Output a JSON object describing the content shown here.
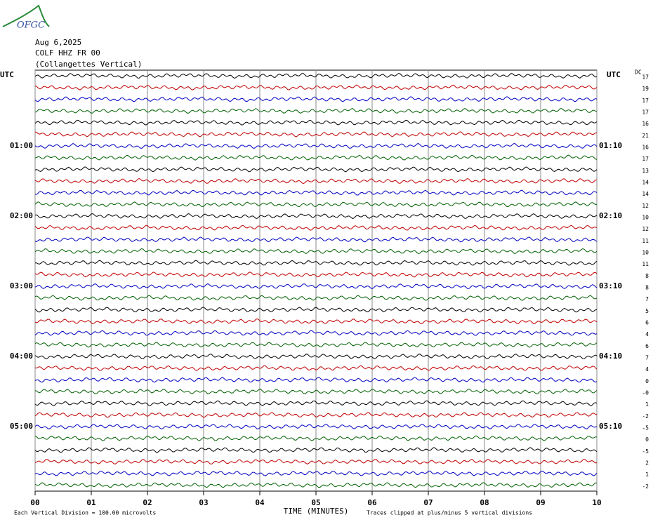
{
  "chart_data": {
    "type": "helicorder",
    "logo": "OFGC",
    "date": "Aug 6,2025",
    "station": "COLF HHZ FR 00",
    "subtitle": "(Collangettes Vertical)",
    "left_header": "UTC",
    "right_header": "UTC",
    "dc_header": "DC",
    "hour_labels": [
      "01:00",
      "02:00",
      "03:00",
      "04:00",
      "05:00"
    ],
    "right_labels": [
      "01:10",
      "02:10",
      "03:10",
      "04:10",
      "05:10"
    ],
    "dc_offsets": [
      17,
      19,
      17,
      17,
      16,
      21,
      16,
      17,
      13,
      14,
      14,
      12,
      10,
      12,
      11,
      10,
      11,
      8,
      8,
      7,
      5,
      6,
      4,
      6,
      7,
      4,
      0,
      {
        "value": 0,
        "label": "-0"
      },
      1,
      -2,
      -5,
      0,
      -5,
      2,
      1,
      -2
    ],
    "trace_colors": [
      "#000000",
      "#c00000",
      "#0000c0",
      "#006000"
    ],
    "xlabel": "TIME (MINUTES)",
    "xlim": [
      0,
      10
    ],
    "xticks": [
      {
        "value": 0,
        "label": "00"
      },
      {
        "value": 1,
        "label": "01"
      },
      {
        "value": 2,
        "label": "02"
      },
      {
        "value": 3,
        "label": "03"
      },
      {
        "value": 4,
        "label": "04"
      },
      {
        "value": 5,
        "label": "05"
      },
      {
        "value": 6,
        "label": "06"
      },
      {
        "value": 7,
        "label": "07"
      },
      {
        "value": 8,
        "label": "08"
      },
      {
        "value": 9,
        "label": "09"
      },
      {
        "value": 10,
        "label": "10"
      }
    ],
    "footnote_left": "Each Vertical Division =  100.00 microvolts",
    "footnote_right": "Traces clipped at plus/minus 5 vertical divisions"
  }
}
